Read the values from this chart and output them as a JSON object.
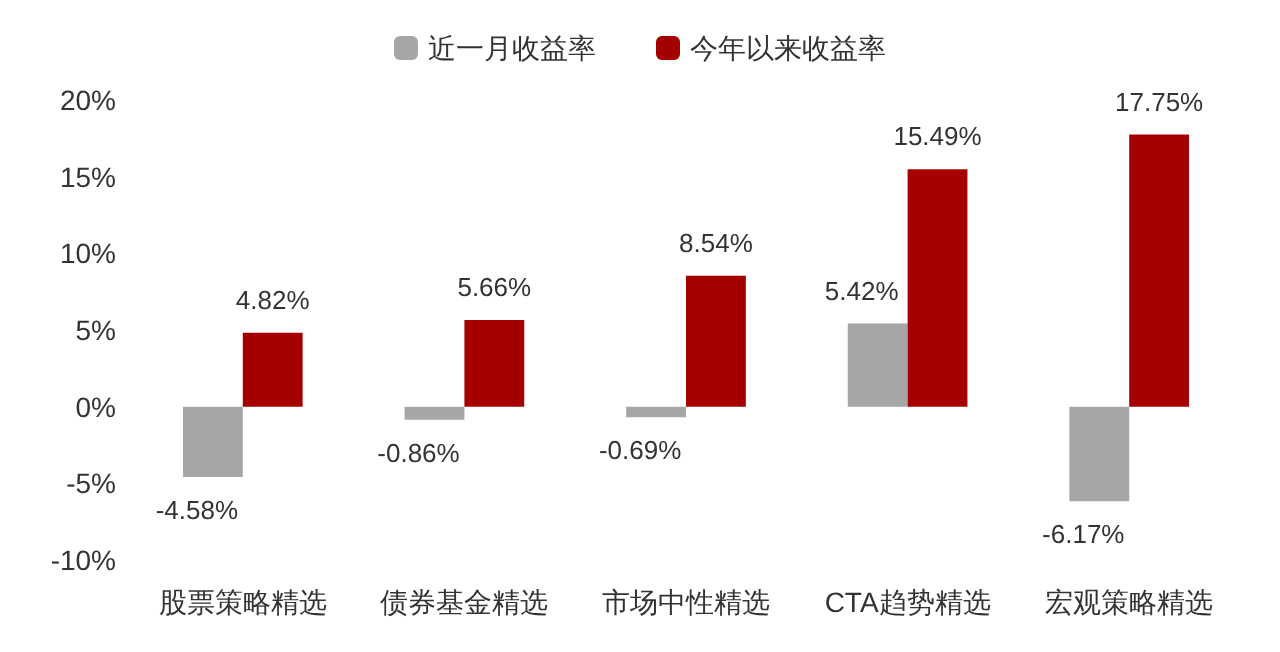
{
  "chart_data": {
    "type": "bar",
    "categories": [
      "股票策略精选",
      "债券基金精选",
      "市场中性精选",
      "CTA趋势精选",
      "宏观策略精选"
    ],
    "series": [
      {
        "name": "近一月收益率",
        "color": "#a6a6a6",
        "values": [
          -4.58,
          -0.86,
          -0.69,
          5.42,
          -6.17
        ],
        "value_labels": [
          "-4.58%",
          "-0.86%",
          "-0.69%",
          "5.42%",
          "-6.17%"
        ]
      },
      {
        "name": "今年以来收益率",
        "color": "#a50000",
        "values": [
          4.82,
          5.66,
          8.54,
          15.49,
          17.75
        ],
        "value_labels": [
          "4.82%",
          "5.66%",
          "8.54%",
          "15.49%",
          "17.75%"
        ]
      }
    ],
    "ylim": [
      -10,
      20
    ],
    "yticks": [
      {
        "value": -10,
        "label": "-10%"
      },
      {
        "value": -5,
        "label": "-5%"
      },
      {
        "value": 0,
        "label": "0%"
      },
      {
        "value": 5,
        "label": "5%"
      },
      {
        "value": 10,
        "label": "10%"
      },
      {
        "value": 15,
        "label": "15%"
      },
      {
        "value": 20,
        "label": "20%"
      }
    ],
    "grid": false,
    "legend": "top"
  }
}
